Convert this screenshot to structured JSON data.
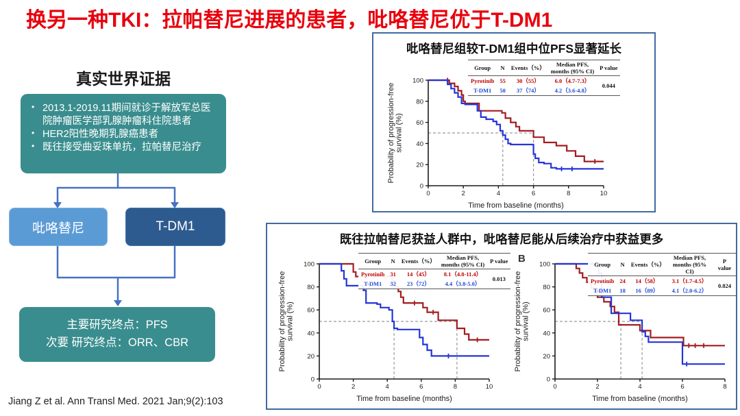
{
  "slide": {
    "title": "换另一种TKI：拉帕替尼进展的患者，吡咯替尼优于T-DM1",
    "citation": "Jiang Z et al. Ann Transl Med. 2021 Jan;9(2):103"
  },
  "colors": {
    "title_red": "#e8000d",
    "teal_box": "#3a8d8e",
    "arm_light_blue": "#5b9bd5",
    "arm_dark_blue": "#2e5b8f",
    "connector_blue": "#4472c4",
    "panel_border_blue": "#3f6aa0",
    "curve_red": "#a21c21",
    "curve_blue": "#2434d9",
    "table_text_red": "#c00000",
    "table_text_blue": "#1f49d7",
    "guide_gray": "#999999"
  },
  "flow": {
    "header": "真实世界证据",
    "criteria_box": {
      "bullets": [
        "2013.1-2019.11期间就诊于解放军总医院肿瘤医学部乳腺肿瘤科住院患者",
        "HER2阳性晚期乳腺癌患者",
        "既往接受曲妥珠单抗，拉帕替尼治疗"
      ]
    },
    "arm_left_label": "吡咯替尼",
    "arm_right_label": "T-DM1",
    "endpoints_box": {
      "lines": [
        "主要研究终点：PFS",
        "次要 研究终点：ORR、CBR"
      ]
    }
  },
  "panels": [
    {
      "title": "吡咯替尼组较T-DM1组中位PFS显著延长"
    },
    {
      "title": "既往拉帕替尼获益人群中，吡咯替尼能从后续治疗中获益更多",
      "label_b": "B"
    }
  ],
  "stats_headers": [
    "Group",
    "N",
    "Events（%）",
    "Median PFS,\nmonths (95% CI)",
    "P value"
  ],
  "chart_data": [
    {
      "type": "line",
      "subtype": "kaplan-meier-step",
      "title": "吡咯替尼组较T-DM1组中位PFS显著延长",
      "xlabel": "Time from baseline (months)",
      "ylabel": "Probability of progression-free survival (%)",
      "ylabel_lines": [
        "Probability of progression-free",
        "survival (%)"
      ],
      "xlim": [
        0,
        10
      ],
      "ylim": [
        0,
        100
      ],
      "xticks": [
        0,
        2,
        4,
        6,
        8,
        10
      ],
      "yticks": [
        0,
        20,
        40,
        60,
        80,
        100
      ],
      "grid": false,
      "guides": [
        {
          "o": "h",
          "y": 50,
          "x1": 0,
          "x2": 6.0
        },
        {
          "o": "v",
          "x": 4.25,
          "y1": 0,
          "y2": 50
        },
        {
          "o": "v",
          "x": 6.0,
          "y1": 0,
          "y2": 52
        }
      ],
      "series": [
        {
          "name": "Pyrotinib",
          "color": "#a21c21",
          "steps": [
            [
              0,
              100
            ],
            [
              1.2,
              100
            ],
            [
              1.2,
              97
            ],
            [
              1.5,
              97
            ],
            [
              1.5,
              94
            ],
            [
              1.7,
              94
            ],
            [
              1.7,
              90
            ],
            [
              1.9,
              90
            ],
            [
              1.9,
              86
            ],
            [
              2.0,
              86
            ],
            [
              2.0,
              80
            ],
            [
              2.1,
              80
            ],
            [
              2.1,
              78
            ],
            [
              2.9,
              78
            ],
            [
              2.9,
              71
            ],
            [
              4.2,
              71
            ],
            [
              4.2,
              69
            ],
            [
              4.4,
              69
            ],
            [
              4.4,
              64
            ],
            [
              4.7,
              64
            ],
            [
              4.7,
              60
            ],
            [
              5.0,
              60
            ],
            [
              5.0,
              56
            ],
            [
              5.2,
              56
            ],
            [
              5.2,
              52
            ],
            [
              6.0,
              52
            ],
            [
              6.0,
              46
            ],
            [
              6.6,
              46
            ],
            [
              6.6,
              41
            ],
            [
              7.3,
              41
            ],
            [
              7.3,
              38
            ],
            [
              7.9,
              38
            ],
            [
              7.9,
              33
            ],
            [
              8.4,
              33
            ],
            [
              8.4,
              28
            ],
            [
              8.9,
              28
            ],
            [
              8.9,
              23
            ],
            [
              10,
              23
            ]
          ],
          "censors": [
            [
              1.1,
              100
            ],
            [
              9.5,
              23
            ]
          ]
        },
        {
          "name": "T-DM1",
          "color": "#2434d9",
          "steps": [
            [
              0,
              100
            ],
            [
              1.1,
              100
            ],
            [
              1.1,
              96
            ],
            [
              1.3,
              96
            ],
            [
              1.3,
              92
            ],
            [
              1.5,
              92
            ],
            [
              1.5,
              88
            ],
            [
              1.7,
              88
            ],
            [
              1.7,
              84
            ],
            [
              1.9,
              84
            ],
            [
              1.9,
              78
            ],
            [
              2.1,
              78
            ],
            [
              2.1,
              77
            ],
            [
              2.8,
              77
            ],
            [
              2.8,
              71
            ],
            [
              3.0,
              71
            ],
            [
              3.0,
              65
            ],
            [
              3.3,
              65
            ],
            [
              3.3,
              63
            ],
            [
              3.7,
              63
            ],
            [
              3.7,
              61
            ],
            [
              3.9,
              61
            ],
            [
              3.9,
              58
            ],
            [
              4.1,
              58
            ],
            [
              4.1,
              52
            ],
            [
              4.25,
              52
            ],
            [
              4.25,
              48
            ],
            [
              4.4,
              48
            ],
            [
              4.4,
              44
            ],
            [
              4.55,
              44
            ],
            [
              4.55,
              40
            ],
            [
              4.7,
              40
            ],
            [
              4.7,
              39
            ],
            [
              6.0,
              39
            ],
            [
              6.0,
              30
            ],
            [
              6.1,
              30
            ],
            [
              6.1,
              26
            ],
            [
              6.3,
              26
            ],
            [
              6.3,
              22
            ],
            [
              6.6,
              22
            ],
            [
              6.6,
              21
            ],
            [
              7.0,
              21
            ],
            [
              7.0,
              17
            ],
            [
              7.3,
              17
            ],
            [
              7.3,
              16
            ],
            [
              10,
              16
            ]
          ],
          "censors": [
            [
              7.6,
              16
            ],
            [
              8.2,
              16
            ]
          ]
        }
      ],
      "table": {
        "rows": [
          {
            "group": "Pyrotinib",
            "n": "55",
            "events": "30（55）",
            "median": "6.0（4.7-7.3）",
            "color": "#c00000"
          },
          {
            "group": "T-DM1",
            "n": "50",
            "events": "37（74）",
            "median": "4.2（3.6-4.8）",
            "color": "#1f49d7"
          }
        ],
        "p_value": "0.044"
      }
    },
    {
      "type": "line",
      "subtype": "kaplan-meier-step",
      "title": "既往拉帕替尼获益人群中，吡咯替尼能从后续治疗中获益更多",
      "panel_label": "",
      "xlabel": "Time from baseline (months)",
      "ylabel": "Probability of progression-free survival (%)",
      "ylabel_lines": [
        "Probability of progression-free",
        "survival (%)"
      ],
      "xlim": [
        0,
        10
      ],
      "ylim": [
        0,
        100
      ],
      "xticks": [
        0,
        2,
        4,
        6,
        8,
        10
      ],
      "yticks": [
        0,
        20,
        40,
        60,
        80,
        100
      ],
      "grid": false,
      "guides": [
        {
          "o": "h",
          "y": 50,
          "x1": 0,
          "x2": 8.1
        },
        {
          "o": "v",
          "x": 4.4,
          "y1": 0,
          "y2": 50
        },
        {
          "o": "v",
          "x": 8.1,
          "y1": 0,
          "y2": 51
        }
      ],
      "series": [
        {
          "name": "Pyrotinib",
          "color": "#a21c21",
          "steps": [
            [
              0,
              100
            ],
            [
              2.0,
              100
            ],
            [
              2.0,
              93
            ],
            [
              2.15,
              93
            ],
            [
              2.15,
              89
            ],
            [
              4.3,
              89
            ],
            [
              4.3,
              85
            ],
            [
              4.5,
              85
            ],
            [
              4.5,
              80
            ],
            [
              4.65,
              80
            ],
            [
              4.65,
              76
            ],
            [
              4.8,
              76
            ],
            [
              4.8,
              71
            ],
            [
              4.95,
              71
            ],
            [
              4.95,
              66
            ],
            [
              6.1,
              66
            ],
            [
              6.1,
              62
            ],
            [
              6.35,
              62
            ],
            [
              6.35,
              58
            ],
            [
              7.0,
              58
            ],
            [
              7.0,
              51
            ],
            [
              8.1,
              51
            ],
            [
              8.1,
              44
            ],
            [
              8.55,
              44
            ],
            [
              8.55,
              39
            ],
            [
              8.8,
              39
            ],
            [
              8.8,
              34
            ],
            [
              10,
              34
            ]
          ],
          "censors": [
            [
              3.1,
              89
            ],
            [
              3.9,
              89
            ],
            [
              5.6,
              66
            ],
            [
              6.7,
              58
            ],
            [
              9.3,
              34
            ]
          ]
        },
        {
          "name": "T-DM1",
          "color": "#2434d9",
          "steps": [
            [
              0,
              100
            ],
            [
              1.3,
              100
            ],
            [
              1.3,
              94
            ],
            [
              1.45,
              94
            ],
            [
              1.45,
              87
            ],
            [
              1.6,
              87
            ],
            [
              1.6,
              81
            ],
            [
              2.6,
              81
            ],
            [
              2.6,
              77
            ],
            [
              2.75,
              77
            ],
            [
              2.75,
              66
            ],
            [
              3.4,
              66
            ],
            [
              3.4,
              65
            ],
            [
              3.6,
              65
            ],
            [
              3.6,
              62
            ],
            [
              4.1,
              62
            ],
            [
              4.1,
              60
            ],
            [
              4.3,
              60
            ],
            [
              4.3,
              50
            ],
            [
              4.4,
              50
            ],
            [
              4.4,
              44
            ],
            [
              4.6,
              44
            ],
            [
              4.6,
              43
            ],
            [
              5.9,
              43
            ],
            [
              5.9,
              36
            ],
            [
              6.1,
              36
            ],
            [
              6.1,
              30
            ],
            [
              6.35,
              30
            ],
            [
              6.35,
              25
            ],
            [
              6.6,
              25
            ],
            [
              6.6,
              20
            ],
            [
              7.0,
              20
            ],
            [
              10,
              20
            ]
          ],
          "censors": [
            [
              7.6,
              20
            ]
          ]
        }
      ],
      "table": {
        "rows": [
          {
            "group": "Pyrotinib",
            "n": "31",
            "events": "14（45）",
            "median": "8.1（4.8-11.4）",
            "color": "#c00000"
          },
          {
            "group": "T-DM1",
            "n": "32",
            "events": "23（72）",
            "median": "4.4（3.8-5.0）",
            "color": "#1f49d7"
          }
        ],
        "p_value": "0.013"
      }
    },
    {
      "type": "line",
      "subtype": "kaplan-meier-step",
      "title": "既往拉帕替尼获益人群中，吡咯替尼能从后续治疗中获益更多",
      "panel_label": "B",
      "xlabel": "Time from baseline (months)",
      "ylabel": "Probability of progression-free survival (%)",
      "ylabel_lines": [
        "Probability of progression-free",
        "survival (%)"
      ],
      "xlim": [
        0,
        8
      ],
      "ylim": [
        0,
        100
      ],
      "xticks": [
        0,
        2,
        4,
        6,
        8
      ],
      "yticks": [
        0,
        20,
        40,
        60,
        80,
        100
      ],
      "grid": false,
      "guides": [
        {
          "o": "h",
          "y": 50,
          "x1": 0,
          "x2": 4.1
        },
        {
          "o": "v",
          "x": 3.1,
          "y1": 0,
          "y2": 50
        },
        {
          "o": "v",
          "x": 4.1,
          "y1": 0,
          "y2": 51
        }
      ],
      "series": [
        {
          "name": "Pyrotinib",
          "color": "#a21c21",
          "steps": [
            [
              0,
              100
            ],
            [
              1.0,
              100
            ],
            [
              1.0,
              96
            ],
            [
              1.15,
              96
            ],
            [
              1.15,
              92
            ],
            [
              1.3,
              92
            ],
            [
              1.3,
              88
            ],
            [
              1.5,
              88
            ],
            [
              1.5,
              84
            ],
            [
              1.7,
              84
            ],
            [
              1.7,
              79
            ],
            [
              1.9,
              79
            ],
            [
              1.9,
              75
            ],
            [
              2.0,
              75
            ],
            [
              2.0,
              71
            ],
            [
              2.3,
              71
            ],
            [
              2.3,
              67
            ],
            [
              2.6,
              67
            ],
            [
              2.6,
              63
            ],
            [
              2.8,
              63
            ],
            [
              2.8,
              58
            ],
            [
              3.0,
              58
            ],
            [
              3.0,
              47
            ],
            [
              4.0,
              47
            ],
            [
              4.0,
              42
            ],
            [
              4.5,
              42
            ],
            [
              4.5,
              36
            ],
            [
              6.05,
              36
            ],
            [
              6.05,
              29
            ],
            [
              8,
              29
            ]
          ],
          "censors": [
            [
              6.3,
              29
            ],
            [
              6.6,
              29
            ],
            [
              7.0,
              29
            ]
          ]
        },
        {
          "name": "T-DM1",
          "color": "#2434d9",
          "steps": [
            [
              0,
              100
            ],
            [
              2.05,
              100
            ],
            [
              2.05,
              92
            ],
            [
              2.2,
              92
            ],
            [
              2.2,
              71
            ],
            [
              2.65,
              71
            ],
            [
              2.65,
              57
            ],
            [
              3.55,
              57
            ],
            [
              3.55,
              51
            ],
            [
              4.1,
              51
            ],
            [
              4.1,
              41
            ],
            [
              4.25,
              41
            ],
            [
              4.25,
              37
            ],
            [
              4.4,
              37
            ],
            [
              4.4,
              32
            ],
            [
              6.0,
              32
            ],
            [
              6.0,
              13
            ],
            [
              8,
              13
            ]
          ],
          "censors": [
            [
              1.75,
              100
            ],
            [
              6.2,
              13
            ]
          ]
        }
      ],
      "table": {
        "rows": [
          {
            "group": "Pyrotinib",
            "n": "24",
            "events": "14（58）",
            "median": "3.1（1.7-4.5）",
            "color": "#c00000"
          },
          {
            "group": "T-DM1",
            "n": "18",
            "events": "16（89）",
            "median": "4.1（2.0-6.2）",
            "color": "#1f49d7"
          }
        ],
        "p_value": "0.824"
      }
    }
  ]
}
